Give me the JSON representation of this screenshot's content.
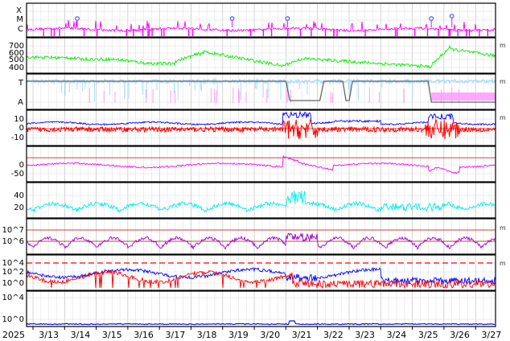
{
  "colors": {
    "magenta": "#ff00ff",
    "green": "#00ee00",
    "lightblue": "#a8dcff",
    "pink": "#ff99ff",
    "red": "#ff0000",
    "blue": "#0000ff",
    "cyan": "#00eeee",
    "purple": "#9900cc",
    "gray": "#666666",
    "darkblue": "#1010cc"
  },
  "x_axis": {
    "year_label": "2025",
    "date_labels": [
      "3/13",
      "3/14",
      "3/15",
      "3/16",
      "3/17",
      "3/18",
      "3/19",
      "3/20",
      "3/21",
      "3/22",
      "3/23",
      "3/24",
      "3/25",
      "3/26",
      "3/27"
    ]
  },
  "right_marker": "m",
  "chart_data": [
    {
      "panel": "xray_class",
      "type": "line",
      "y_tick_labels": [
        "X",
        "M",
        "C"
      ],
      "series": [
        {
          "color": "magenta",
          "style": "flare activity with downward spikes"
        }
      ],
      "event_markers_dates": [
        "3/14",
        "3/19",
        "3/20",
        "3/25",
        "3/26"
      ]
    },
    {
      "panel": "solar_wind_speed",
      "type": "line",
      "y_ticks": [
        400,
        500,
        600,
        700
      ],
      "ylim": [
        320,
        760
      ],
      "series": [
        {
          "color": "green"
        }
      ]
    },
    {
      "panel": "polarity",
      "type": "line",
      "y_tick_labels": [
        "T",
        "A"
      ],
      "series": [
        {
          "color": "lightblue"
        },
        {
          "color": "pink"
        },
        {
          "color": "gray"
        }
      ]
    },
    {
      "panel": "imf_b",
      "type": "line",
      "y_ticks": [
        -10,
        0,
        10
      ],
      "ylim": [
        -22,
        24
      ],
      "series": [
        {
          "color": "blue",
          "style": "total field"
        },
        {
          "color": "red",
          "style": "Bz"
        }
      ]
    },
    {
      "panel": "dst",
      "type": "line",
      "y_ticks": [
        -50,
        0
      ],
      "ylim": [
        -95,
        45
      ],
      "series": [
        {
          "color": "magenta"
        }
      ]
    },
    {
      "panel": "proton_density",
      "type": "line",
      "y_ticks": [
        20,
        40
      ],
      "ylim": [
        0,
        52
      ],
      "series": [
        {
          "color": "cyan"
        }
      ]
    },
    {
      "panel": "electron_flux",
      "type": "line",
      "y_tick_labels": [
        "10^6",
        "10^7"
      ],
      "series": [
        {
          "color": "purple"
        }
      ]
    },
    {
      "panel": "proton_flux",
      "type": "line",
      "y_tick_labels": [
        "10^0",
        "10^2",
        "10^4"
      ],
      "series": [
        {
          "color": "blue"
        },
        {
          "color": "red"
        }
      ]
    },
    {
      "panel": "high_energy_proton",
      "type": "line",
      "y_tick_labels": [
        "10^0",
        "10^4"
      ],
      "series": [
        {
          "color": "darkblue"
        }
      ]
    }
  ]
}
